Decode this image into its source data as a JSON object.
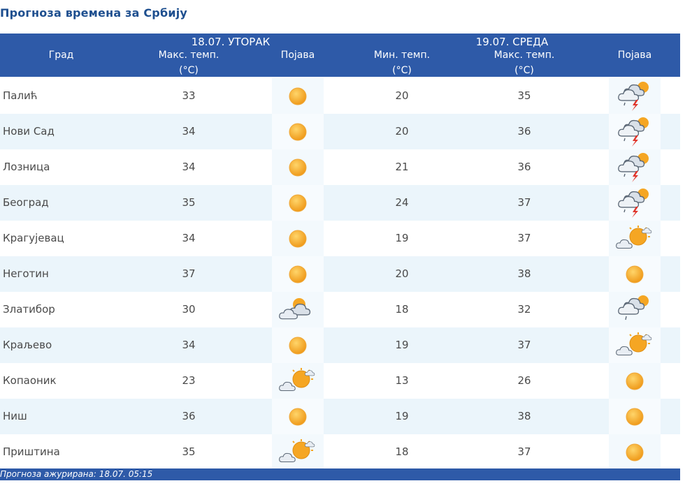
{
  "title": "Прогноза времена за Србију",
  "header": {
    "city_label": "Град",
    "day1": {
      "date": "18.07. УТОРАК",
      "max_label_1": "Макс. темп.",
      "max_label_2": "(°C)",
      "phenomenon_label": "Појава"
    },
    "day2": {
      "date": "19.07. СРЕДА",
      "min_label_1": "Мин. темп.",
      "min_label_2": "(°C)",
      "max_label_1": "Макс. темп.",
      "max_label_2": "(°C)",
      "phenomenon_label": "Појава"
    }
  },
  "rows": [
    {
      "city": "Палић",
      "d1_max": "33",
      "d1_icon": "sunny-icon",
      "d2_min": "20",
      "d2_max": "35",
      "d2_icon": "thunderstorm-icon"
    },
    {
      "city": "Нови Сад",
      "d1_max": "34",
      "d1_icon": "sunny-icon",
      "d2_min": "20",
      "d2_max": "36",
      "d2_icon": "thunderstorm-icon"
    },
    {
      "city": "Лозница",
      "d1_max": "34",
      "d1_icon": "sunny-icon",
      "d2_min": "21",
      "d2_max": "36",
      "d2_icon": "thunderstorm-icon"
    },
    {
      "city": "Београд",
      "d1_max": "35",
      "d1_icon": "sunny-icon",
      "d2_min": "24",
      "d2_max": "37",
      "d2_icon": "thunderstorm-icon"
    },
    {
      "city": "Крагујевац",
      "d1_max": "34",
      "d1_icon": "sunny-icon",
      "d2_min": "19",
      "d2_max": "37",
      "d2_icon": "sun-cloud-icon"
    },
    {
      "city": "Неготин",
      "d1_max": "37",
      "d1_icon": "sunny-icon",
      "d2_min": "20",
      "d2_max": "38",
      "d2_icon": "sunny-icon"
    },
    {
      "city": "Златибор",
      "d1_max": "30",
      "d1_icon": "cloudy-sun-icon",
      "d2_min": "18",
      "d2_max": "32",
      "d2_icon": "cloudy-rain-icon"
    },
    {
      "city": "Краљево",
      "d1_max": "34",
      "d1_icon": "sunny-icon",
      "d2_min": "19",
      "d2_max": "37",
      "d2_icon": "sun-cloud-icon"
    },
    {
      "city": "Копаоник",
      "d1_max": "23",
      "d1_icon": "sun-cloud-icon",
      "d2_min": "13",
      "d2_max": "26",
      "d2_icon": "sunny-icon"
    },
    {
      "city": "Ниш",
      "d1_max": "36",
      "d1_icon": "sunny-icon",
      "d2_min": "19",
      "d2_max": "38",
      "d2_icon": "sunny-icon"
    },
    {
      "city": "Приштина",
      "d1_max": "35",
      "d1_icon": "sun-cloud-icon",
      "d2_min": "18",
      "d2_max": "37",
      "d2_icon": "sunny-icon"
    }
  ],
  "footer": "Прогноза ажурирана:  18.07. 05:15",
  "colors": {
    "header_bg": "#2e5aa8",
    "title": "#1e4f8f",
    "row_alt": "#ebf5fb",
    "sun": "#f5a623",
    "cloud": "#6b7785"
  }
}
